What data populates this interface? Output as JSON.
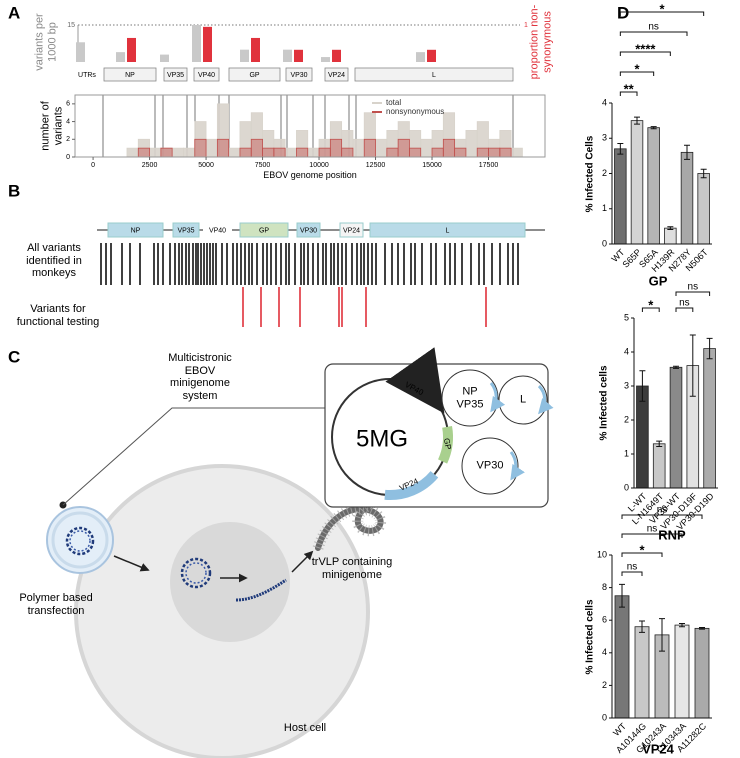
{
  "panel_labels": [
    "A",
    "B",
    "C",
    "D"
  ],
  "chart_data": [
    {
      "type": "bar",
      "y_label": "variants per 1000 bp",
      "y2_label": "proportion non-synonymous",
      "categories": [
        "UTRs",
        "NP",
        "VP35",
        "VP40",
        "GP",
        "VP30",
        "VP24",
        "L"
      ],
      "series": [
        {
          "color": "#c9c9c9",
          "values": [
            8,
            4,
            3,
            15,
            5,
            5,
            2,
            4
          ]
        },
        {
          "color": "#e0323c",
          "axis": "y2",
          "values": [
            null,
            0.65,
            0,
            0.95,
            0.65,
            0.33,
            0.33,
            0.33
          ]
        }
      ],
      "ylim": [
        0,
        15
      ],
      "yticks": [
        15
      ],
      "y2lim": [
        0,
        1
      ],
      "y2ticks": [
        1
      ]
    },
    {
      "type": "histogram",
      "x_label": "EBOV genome position",
      "y_label": "number of variants",
      "bins": [
        0,
        500,
        1000,
        1500,
        2000,
        2500,
        3000,
        3500,
        4000,
        4500,
        5000,
        5500,
        6000,
        6500,
        7000,
        7500,
        8000,
        8500,
        9000,
        9500,
        10000,
        10500,
        11000,
        11500,
        12000,
        12500,
        13000,
        13500,
        14000,
        14500,
        15000,
        15500,
        16000,
        16500,
        17000,
        17500,
        18000,
        18500,
        19000
      ],
      "series": [
        {
          "name": "total",
          "color": "#d8d3cb",
          "values": [
            0,
            0,
            0,
            1,
            2,
            1,
            1,
            1,
            1,
            4,
            2,
            6,
            1,
            4,
            5,
            3,
            2,
            1,
            3,
            1,
            2,
            4,
            3,
            2,
            5,
            2,
            3,
            4,
            3,
            2,
            3,
            5,
            2,
            3,
            4,
            2,
            3,
            1
          ]
        },
        {
          "name": "nonsynonymous",
          "color": "#c0504d",
          "values": [
            0,
            0,
            0,
            0,
            1,
            0,
            1,
            0,
            0,
            2,
            0,
            2,
            0,
            1,
            2,
            1,
            1,
            0,
            1,
            0,
            1,
            2,
            1,
            0,
            2,
            0,
            1,
            2,
            1,
            0,
            1,
            2,
            1,
            0,
            1,
            1,
            1,
            0
          ]
        }
      ],
      "xlim": [
        -800,
        20000
      ],
      "xticks": [
        0,
        2500,
        5000,
        7500,
        10000,
        12500,
        15000,
        17500
      ],
      "ylim": [
        0,
        7
      ],
      "yticks": [
        0,
        2,
        4,
        6
      ],
      "legend": "top-right"
    },
    {
      "type": "bar",
      "title": "GP",
      "y_label": "% Infected Cells",
      "categories": [
        "WT",
        "S65P",
        "S65A",
        "H139R",
        "N278Y",
        "N506T"
      ],
      "values": [
        2.7,
        3.5,
        3.3,
        0.45,
        2.6,
        2.0
      ],
      "errors": [
        0.15,
        0.1,
        0.03,
        0.04,
        0.2,
        0.12
      ],
      "colors": [
        "#6f6f6f",
        "#d4d4d4",
        "#b5b5b5",
        "#dedede",
        "#a8a8a8",
        "#c8c8c8"
      ],
      "ylim": [
        0,
        4
      ],
      "yticks": [
        0,
        1,
        2,
        3,
        4
      ],
      "comparisons": [
        {
          "from": "WT",
          "to": "S65P",
          "label": "**"
        },
        {
          "from": "WT",
          "to": "S65A",
          "label": "*"
        },
        {
          "from": "WT",
          "to": "H139R",
          "label": "****"
        },
        {
          "from": "WT",
          "to": "N278Y",
          "label": "ns"
        },
        {
          "from": "WT",
          "to": "N506T",
          "label": "*"
        }
      ]
    },
    {
      "type": "bar",
      "title": "RNP",
      "y_label": "% Infected cells",
      "categories": [
        "L-WT",
        "L-N1649T",
        "VP30-WT",
        "VP30-D19F",
        "VP30-D19D"
      ],
      "values": [
        3.0,
        1.3,
        3.55,
        3.6,
        4.1
      ],
      "errors": [
        0.45,
        0.08,
        0.03,
        0.9,
        0.3
      ],
      "colors": [
        "#3c3c3c",
        "#c8c8c8",
        "#8a8a8a",
        "#e2e2e2",
        "#ababab"
      ],
      "ylim": [
        0,
        5
      ],
      "yticks": [
        0,
        1,
        2,
        3,
        4,
        5
      ],
      "comparisons": [
        {
          "from": "L-WT",
          "to": "L-N1649T",
          "label": "*"
        },
        {
          "from": "VP30-WT",
          "to": "VP30-D19F",
          "label": "ns"
        },
        {
          "from": "VP30-WT",
          "to": "VP30-D19D",
          "label": "ns"
        }
      ]
    },
    {
      "type": "bar",
      "title": "VP24",
      "y_label": "% Infected cells",
      "categories": [
        "WT",
        "A10144G",
        "G10243A",
        "C10343A",
        "A11282C"
      ],
      "values": [
        7.5,
        5.6,
        5.1,
        5.7,
        5.5
      ],
      "errors": [
        0.7,
        0.35,
        1.0,
        0.1,
        0.05
      ],
      "colors": [
        "#777777",
        "#c8c8c8",
        "#bbbbbb",
        "#e6e6e6",
        "#aaaaaa"
      ],
      "ylim": [
        0,
        10
      ],
      "yticks": [
        0,
        2,
        4,
        6,
        8,
        10
      ],
      "comparisons": [
        {
          "from": "WT",
          "to": "A10144G",
          "label": "ns"
        },
        {
          "from": "WT",
          "to": "G10243A",
          "label": "*"
        },
        {
          "from": "WT",
          "to": "C10343A",
          "label": "ns"
        },
        {
          "from": "WT",
          "to": "A11282C",
          "label": "ns"
        }
      ]
    }
  ],
  "genome_map": {
    "genes": [
      "NP",
      "VP35",
      "VP40",
      "GP",
      "VP30",
      "VP24",
      "L"
    ],
    "rows": [
      "All variants identified in monkeys",
      "Variants for functional testing"
    ]
  },
  "minigenome": {
    "callout": "Multicistronic EBOV minigenome system",
    "plasmid": "5MG",
    "plasmid_genes": [
      "VP40",
      "GP",
      "VP24"
    ],
    "helpers": [
      "NP VP35",
      "L",
      "VP30"
    ],
    "transfection": "Polymer based transfection",
    "product": "trVLP containing minigenome",
    "cell": "Host cell"
  }
}
